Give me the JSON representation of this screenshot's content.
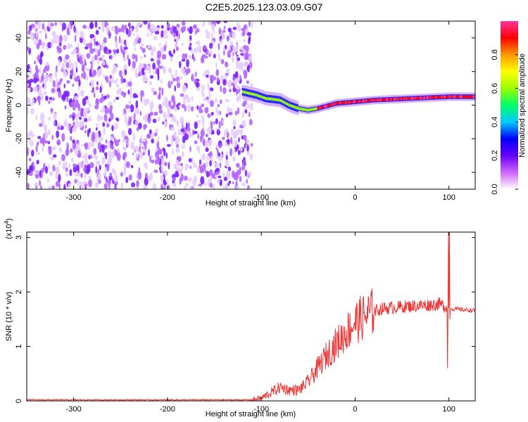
{
  "title": "C2E5.2025.123.03.09.G07",
  "chart_data": [
    {
      "type": "heatmap",
      "xlabel": "Height of straight line (km)",
      "ylabel": "Frequency (Hz)",
      "xlim": [
        -350,
        128
      ],
      "ylim": [
        -50,
        50
      ],
      "x_ticks": [
        "-300",
        "-200",
        "-100",
        "0",
        "100"
      ],
      "y_ticks": [
        "-40",
        "-20",
        "0",
        "20",
        "40"
      ],
      "colorbar": {
        "label": "Normalized spectral amplitude",
        "range": [
          0,
          1
        ],
        "ticks": [
          "0.0",
          "0.2",
          "0.4",
          "0.6",
          "0.8"
        ],
        "colors": [
          "#ffffff",
          "#cc66ff",
          "#6600ff",
          "#0000ff",
          "#00ccff",
          "#00ff66",
          "#99ff00",
          "#ffff00",
          "#ff9900",
          "#ff0000",
          "#ff3399"
        ]
      },
      "noise_region": {
        "x_range": [
          -350,
          -110
        ],
        "freq_range": [
          -50,
          50
        ]
      },
      "ridge": [
        {
          "x": -120,
          "f": 8
        },
        {
          "x": -105,
          "f": 6
        },
        {
          "x": -95,
          "f": 4
        },
        {
          "x": -80,
          "f": 3
        },
        {
          "x": -70,
          "f": 0
        },
        {
          "x": -60,
          "f": -2
        },
        {
          "x": -50,
          "f": -3
        },
        {
          "x": -40,
          "f": -2
        },
        {
          "x": -20,
          "f": 1
        },
        {
          "x": 0,
          "f": 2
        },
        {
          "x": 20,
          "f": 3
        },
        {
          "x": 40,
          "f": 3.5
        },
        {
          "x": 60,
          "f": 4
        },
        {
          "x": 80,
          "f": 4.5
        },
        {
          "x": 100,
          "f": 5
        },
        {
          "x": 128,
          "f": 5
        }
      ]
    },
    {
      "type": "line",
      "xlabel": "Height of straight line (km)",
      "ylabel": "SNR (10 * v/v)",
      "y_multiplier": "(x10",
      "y_multiplier_exp": "4",
      "xlim": [
        -350,
        128
      ],
      "ylim": [
        0,
        3.1
      ],
      "x_ticks": [
        "-300",
        "-200",
        "-100",
        "0",
        "100"
      ],
      "y_ticks": [
        "0",
        "1",
        "2",
        "3"
      ],
      "series_color": "#ee3333",
      "envelope": [
        {
          "x": -350,
          "y": 0.02
        },
        {
          "x": -110,
          "y": 0.02
        },
        {
          "x": -100,
          "y": 0.05
        },
        {
          "x": -90,
          "y": 0.15
        },
        {
          "x": -80,
          "y": 0.25
        },
        {
          "x": -70,
          "y": 0.2
        },
        {
          "x": -60,
          "y": 0.2
        },
        {
          "x": -50,
          "y": 0.35
        },
        {
          "x": -40,
          "y": 0.6
        },
        {
          "x": -30,
          "y": 0.85
        },
        {
          "x": -20,
          "y": 1.05
        },
        {
          "x": -10,
          "y": 1.25
        },
        {
          "x": 0,
          "y": 1.45
        },
        {
          "x": 10,
          "y": 1.55
        },
        {
          "x": 20,
          "y": 1.65
        },
        {
          "x": 30,
          "y": 1.7
        },
        {
          "x": 50,
          "y": 1.73
        },
        {
          "x": 70,
          "y": 1.75
        },
        {
          "x": 90,
          "y": 1.78
        },
        {
          "x": 100,
          "y": 1.7
        },
        {
          "x": 110,
          "y": 1.68
        },
        {
          "x": 128,
          "y": 1.66
        }
      ],
      "spikes": [
        {
          "x": 98.5,
          "y": 0.6
        },
        {
          "x": 99.5,
          "y": 3.1
        },
        {
          "x": 100.5,
          "y": 3.1
        },
        {
          "x": 101,
          "y": 1.5
        }
      ]
    }
  ]
}
